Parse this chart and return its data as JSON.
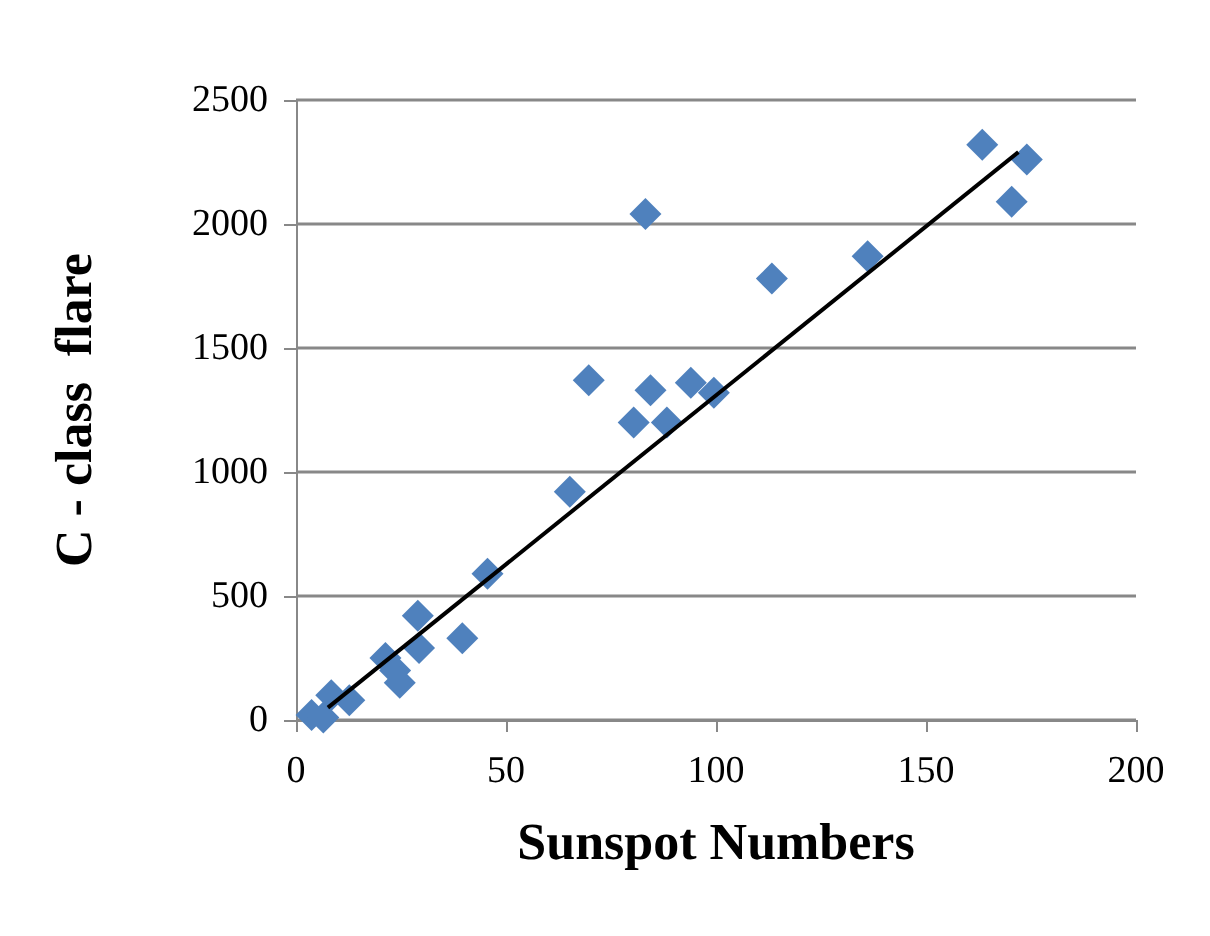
{
  "chart_data": {
    "type": "scatter",
    "xlabel": "Sunspot Numbers",
    "ylabel": "C - class  flare",
    "xlim": [
      0,
      200
    ],
    "xticks": [
      0,
      50,
      100,
      150,
      200
    ],
    "ylim": [
      0,
      2500
    ],
    "yticks": [
      0,
      500,
      1000,
      1500,
      2000,
      2500
    ],
    "grid": "y",
    "series": [
      {
        "color": "#4f81bd",
        "marker": "diamond",
        "x": [
          3.7,
          6.5,
          8.4,
          12.7,
          21.3,
          23.6,
          24.7,
          29,
          29.3,
          39.6,
          45.6,
          65.2,
          69.7,
          80.4,
          83.2,
          84.4,
          88.3,
          94,
          99.5,
          113.3,
          136.1,
          163.4,
          170.4,
          174
        ],
        "values": [
          20,
          10,
          100,
          80,
          250,
          200,
          150,
          420,
          290,
          330,
          590,
          920,
          1370,
          1200,
          2040,
          1330,
          1200,
          1360,
          1320,
          1780,
          1870,
          2320,
          2090,
          2260
        ]
      },
      {
        "type": "line",
        "color": "#000000",
        "marker": "none",
        "x": [
          7.6,
          172
        ],
        "values": [
          50,
          2290
        ]
      }
    ]
  }
}
